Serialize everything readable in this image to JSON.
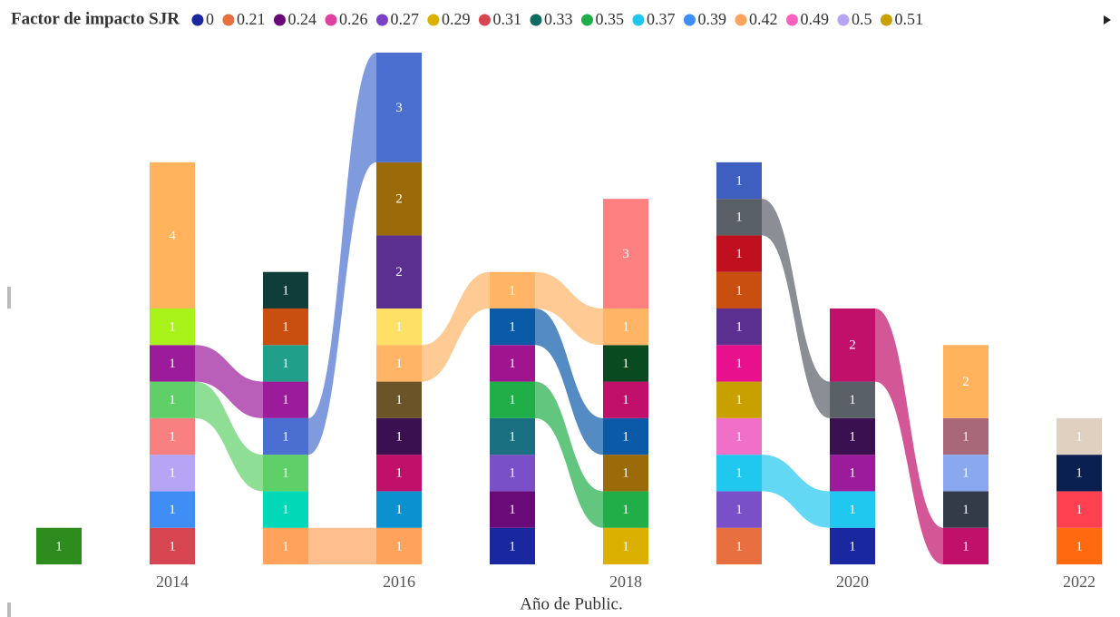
{
  "chart_data": {
    "type": "ribbon",
    "legend_title": "Factor de impacto SJR",
    "legend": [
      {
        "name": "0",
        "color": "#1a28a0"
      },
      {
        "name": "0.21",
        "color": "#e87040"
      },
      {
        "name": "0.24",
        "color": "#6a0a78"
      },
      {
        "name": "0.26",
        "color": "#e040a0"
      },
      {
        "name": "0.27",
        "color": "#7a40c8"
      },
      {
        "name": "0.29",
        "color": "#dcb000"
      },
      {
        "name": "0.31",
        "color": "#d64550"
      },
      {
        "name": "0.33",
        "color": "#0f6a60"
      },
      {
        "name": "0.35",
        "color": "#1fae48"
      },
      {
        "name": "0.37",
        "color": "#20c8f0"
      },
      {
        "name": "0.39",
        "color": "#3f8ef5"
      },
      {
        "name": "0.42",
        "color": "#ffa35c"
      },
      {
        "name": "0.49",
        "color": "#ff60c0"
      },
      {
        "name": "0.5",
        "color": "#b6a4f5"
      },
      {
        "name": "0.51",
        "color": "#c8a000"
      }
    ],
    "x_label": "Año de Public.",
    "x": [
      2013,
      2014,
      2015,
      2016,
      2017,
      2018,
      2019,
      2020,
      2021,
      2022
    ],
    "xlim": [
      2012.5,
      2022.5
    ],
    "xticks": [
      2014,
      2016,
      2018,
      2020,
      2022
    ],
    "ylim": [
      0,
      14
    ],
    "columns": [
      {
        "segments": [
          {
            "color": "#2e8b1e",
            "value": 1
          }
        ]
      },
      {
        "segments": [
          {
            "color": "#d64550",
            "value": 1
          },
          {
            "color": "#3f8ef5",
            "value": 1
          },
          {
            "color": "#b6a4f5",
            "value": 1
          },
          {
            "color": "#f98080",
            "value": 1
          },
          {
            "color": "#5fd068",
            "value": 1
          },
          {
            "color": "#9b1b9b",
            "value": 1
          },
          {
            "color": "#a8f21a",
            "value": 1
          },
          {
            "color": "#ffb35c",
            "value": 4
          }
        ]
      },
      {
        "segments": [
          {
            "color": "#ffa35c",
            "value": 1
          },
          {
            "color": "#00d8b8",
            "value": 1
          },
          {
            "color": "#5fd068",
            "value": 1
          },
          {
            "color": "#4a6fd0",
            "value": 1
          },
          {
            "color": "#9b1b9b",
            "value": 1
          },
          {
            "color": "#20a08a",
            "value": 1
          },
          {
            "color": "#c84f10",
            "value": 1
          },
          {
            "color": "#0f3d3a",
            "value": 1
          }
        ]
      },
      {
        "segments": [
          {
            "color": "#ffa35c",
            "value": 1
          },
          {
            "color": "#0b90d0",
            "value": 1
          },
          {
            "color": "#c0106a",
            "value": 1
          },
          {
            "color": "#3a1050",
            "value": 1
          },
          {
            "color": "#6b5528",
            "value": 1
          },
          {
            "color": "#ffb466",
            "value": 1
          },
          {
            "color": "#ffe066",
            "value": 1
          },
          {
            "color": "#5b3090",
            "value": 2
          },
          {
            "color": "#9b6b0a",
            "value": 2
          },
          {
            "color": "#4a6fd0",
            "value": 3
          }
        ]
      },
      {
        "segments": [
          {
            "color": "#1a28a0",
            "value": 1
          },
          {
            "color": "#6a0a78",
            "value": 1
          },
          {
            "color": "#7a50c8",
            "value": 1
          },
          {
            "color": "#1a7080",
            "value": 1
          },
          {
            "color": "#1fae48",
            "value": 1
          },
          {
            "color": "#a0158f",
            "value": 1
          },
          {
            "color": "#0a5aa8",
            "value": 1
          },
          {
            "color": "#ffb466",
            "value": 1
          }
        ]
      },
      {
        "segments": [
          {
            "color": "#dcb000",
            "value": 1
          },
          {
            "color": "#1fae48",
            "value": 1
          },
          {
            "color": "#9b6b0a",
            "value": 1
          },
          {
            "color": "#0a5aa8",
            "value": 1
          },
          {
            "color": "#c0106a",
            "value": 1
          },
          {
            "color": "#0a4a20",
            "value": 1
          },
          {
            "color": "#ffb466",
            "value": 1
          },
          {
            "color": "#ff8080",
            "value": 3
          }
        ]
      },
      {
        "segments": [
          {
            "color": "#e87040",
            "value": 1
          },
          {
            "color": "#7a50c8",
            "value": 1
          },
          {
            "color": "#20c8f0",
            "value": 1
          },
          {
            "color": "#f070c8",
            "value": 1
          },
          {
            "color": "#c8a000",
            "value": 1
          },
          {
            "color": "#e8108c",
            "value": 1
          },
          {
            "color": "#5b3090",
            "value": 1
          },
          {
            "color": "#c84f10",
            "value": 1
          },
          {
            "color": "#c01020",
            "value": 1
          },
          {
            "color": "#5a6068",
            "value": 1
          },
          {
            "color": "#3f5fc0",
            "value": 1
          }
        ]
      },
      {
        "segments": [
          {
            "color": "#1a28a0",
            "value": 1
          },
          {
            "color": "#20c8f0",
            "value": 1
          },
          {
            "color": "#9b1b9b",
            "value": 1
          },
          {
            "color": "#3a1050",
            "value": 1
          },
          {
            "color": "#5a6068",
            "value": 1
          },
          {
            "color": "#c0106a",
            "value": 2
          }
        ]
      },
      {
        "segments": [
          {
            "color": "#c0106a",
            "value": 1
          },
          {
            "color": "#333a48",
            "value": 1
          },
          {
            "color": "#8aa8f0",
            "value": 1
          },
          {
            "color": "#a86878",
            "value": 1
          },
          {
            "color": "#ffb35c",
            "value": 2
          }
        ]
      },
      {
        "segments": [
          {
            "color": "#ff6a10",
            "value": 1
          },
          {
            "color": "#ff4050",
            "value": 1
          },
          {
            "color": "#0a2050",
            "value": 1
          },
          {
            "color": "#e0d0c0",
            "value": 1
          }
        ]
      }
    ]
  }
}
